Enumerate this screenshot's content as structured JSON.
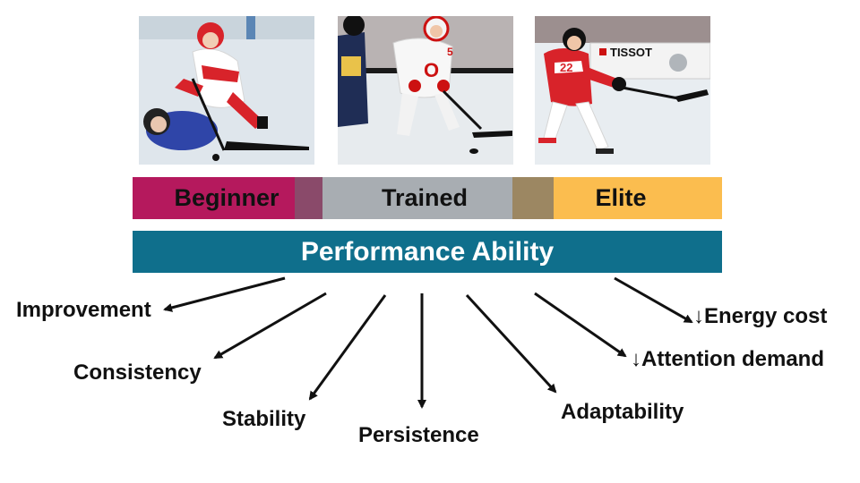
{
  "photos": [
    {
      "level": "beginner",
      "jersey_number": ""
    },
    {
      "level": "trained",
      "jersey_number": "5"
    },
    {
      "level": "elite",
      "jersey_number": "22"
    }
  ],
  "rink_sign": "TISSOT",
  "levels": {
    "beginner": "Beginner",
    "trained": "Trained",
    "elite": "Elite"
  },
  "performance_label": "Performance Ability",
  "outcomes": {
    "improvement": "Improvement",
    "consistency": "Consistency",
    "stability": "Stability",
    "persistence": "Persistence",
    "adaptability": "Adaptability",
    "attention": "↓Attention demand",
    "energy": "↓Energy cost"
  },
  "colors": {
    "beginner": "#b5195d",
    "trained": "#a8adb2",
    "elite": "#fbbd4f",
    "performance": "#0f6f8c"
  }
}
